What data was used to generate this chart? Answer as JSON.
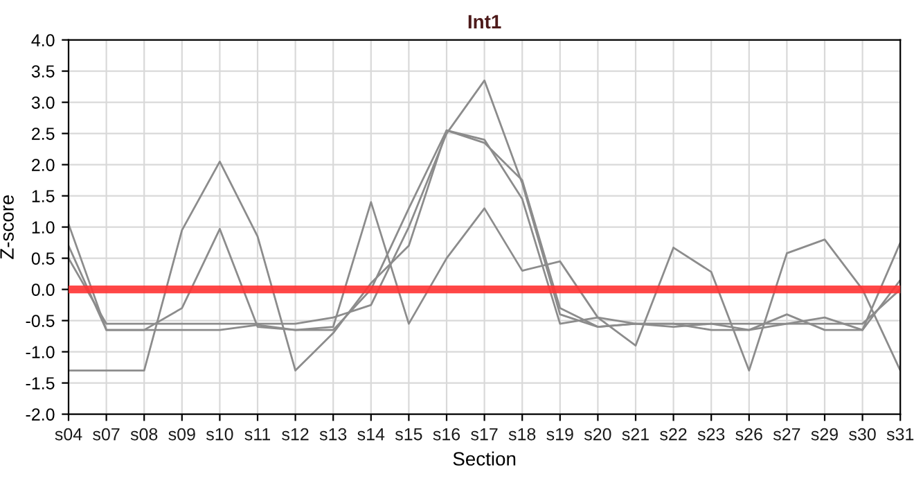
{
  "chart_data": {
    "type": "line",
    "title": "Int1",
    "xlabel": "Section",
    "ylabel": "Z-score",
    "categories": [
      "s04",
      "s07",
      "s08",
      "s09",
      "s10",
      "s11",
      "s12",
      "s13",
      "s14",
      "s15",
      "s16",
      "s17",
      "s18",
      "s19",
      "s20",
      "s21",
      "s22",
      "s23",
      "s26",
      "s27",
      "s29",
      "s30",
      "s31"
    ],
    "series": [
      {
        "color": "#8c8c8c",
        "values": [
          -1.3,
          -1.3,
          -1.3,
          0.95,
          2.05,
          0.85,
          -1.3,
          -0.7,
          0.1,
          0.7,
          2.55,
          2.4,
          1.45,
          -0.55,
          -0.45,
          -0.55,
          -0.55,
          -0.65,
          -0.65,
          -0.55,
          -0.45,
          -0.65,
          0.75
        ]
      },
      {
        "color": "#8c8c8c",
        "values": [
          1.05,
          -0.65,
          -0.65,
          -0.3,
          0.97,
          -0.6,
          -0.65,
          -0.6,
          1.4,
          -0.55,
          0.5,
          1.3,
          0.3,
          0.45,
          -0.45,
          -0.9,
          0.67,
          0.28,
          -1.3,
          0.58,
          0.8,
          0.0,
          -1.3
        ]
      },
      {
        "color": "#8c8c8c",
        "values": [
          0.7,
          -0.65,
          -0.65,
          -0.65,
          -0.65,
          -0.57,
          -0.65,
          -0.65,
          0.0,
          1.3,
          2.55,
          2.35,
          1.75,
          -0.3,
          -0.6,
          -0.55,
          -0.6,
          -0.55,
          -0.65,
          -0.4,
          -0.65,
          -0.65,
          0.15
        ]
      },
      {
        "color": "#8c8c8c",
        "values": [
          0.5,
          -0.55,
          -0.55,
          -0.55,
          -0.55,
          -0.55,
          -0.55,
          -0.45,
          -0.25,
          1.0,
          2.5,
          3.35,
          1.7,
          -0.4,
          -0.6,
          -0.55,
          -0.55,
          -0.55,
          -0.55,
          -0.55,
          -0.55,
          -0.55,
          0.0
        ]
      }
    ],
    "ylim": [
      -2.0,
      4.0
    ],
    "yticks": [
      {
        "value": -2.0,
        "label": "-2.0"
      },
      {
        "value": -1.5,
        "label": "-1.5"
      },
      {
        "value": -1.0,
        "label": "-1.0"
      },
      {
        "value": -0.5,
        "label": "-0.5"
      },
      {
        "value": 0.0,
        "label": "0.0"
      },
      {
        "value": 0.5,
        "label": "0.5"
      },
      {
        "value": 1.0,
        "label": "1.0"
      },
      {
        "value": 1.5,
        "label": "1.5"
      },
      {
        "value": 2.0,
        "label": "2.0"
      },
      {
        "value": 2.5,
        "label": "2.5"
      },
      {
        "value": 3.0,
        "label": "3.0"
      },
      {
        "value": 3.5,
        "label": "3.5"
      },
      {
        "value": 4.0,
        "label": "4.0"
      }
    ],
    "ref_lines": [
      {
        "axis": "y",
        "value": 0.0,
        "color": "#ff3333"
      }
    ],
    "grid": true,
    "line_style": "solid",
    "marker": "none"
  }
}
